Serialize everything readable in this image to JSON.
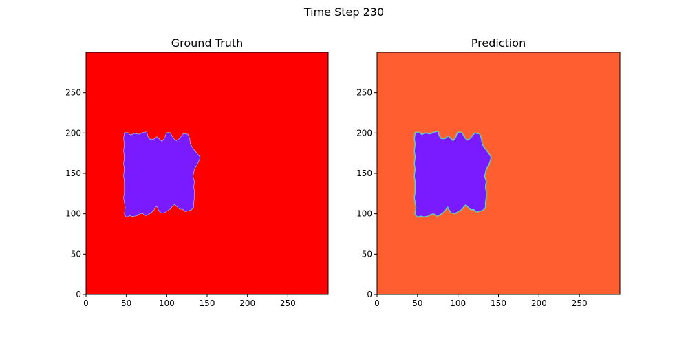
{
  "figure": {
    "suptitle": "Time Step 230"
  },
  "chart_data": [
    {
      "type": "heatmap",
      "title": "Ground Truth",
      "xlim": [
        0,
        300
      ],
      "ylim": [
        0,
        300
      ],
      "xticks": [
        "0",
        "50",
        "100",
        "150",
        "200",
        "250"
      ],
      "yticks": [
        "0",
        "50",
        "100",
        "150",
        "200",
        "250"
      ],
      "background_color": "#ff0000",
      "region_color": "#7a1aff",
      "edge_color": "#8ad8ff",
      "region_bounds": {
        "x": [
          47,
          141
        ],
        "y": [
          96,
          201
        ]
      },
      "region_outline": [
        [
          48,
          200
        ],
        [
          52,
          200
        ],
        [
          55,
          197
        ],
        [
          60,
          199
        ],
        [
          66,
          198
        ],
        [
          70,
          200
        ],
        [
          75,
          201
        ],
        [
          76,
          196
        ],
        [
          79,
          192
        ],
        [
          84,
          192
        ],
        [
          88,
          195
        ],
        [
          91,
          192
        ],
        [
          94,
          189
        ],
        [
          98,
          194
        ],
        [
          100,
          200
        ],
        [
          104,
          200
        ],
        [
          108,
          193
        ],
        [
          112,
          190
        ],
        [
          116,
          193
        ],
        [
          121,
          199
        ],
        [
          126,
          198
        ],
        [
          128,
          193
        ],
        [
          129,
          186
        ],
        [
          132,
          181
        ],
        [
          136,
          176
        ],
        [
          141,
          170
        ],
        [
          140,
          167
        ],
        [
          137,
          160
        ],
        [
          134,
          156
        ],
        [
          133,
          151
        ],
        [
          132,
          146
        ],
        [
          134,
          140
        ],
        [
          133,
          133
        ],
        [
          134,
          127
        ],
        [
          134,
          121
        ],
        [
          133,
          114
        ],
        [
          133,
          108
        ],
        [
          130,
          105
        ],
        [
          126,
          104
        ],
        [
          123,
          103
        ],
        [
          120,
          106
        ],
        [
          116,
          106
        ],
        [
          113,
          109
        ],
        [
          110,
          112
        ],
        [
          108,
          111
        ],
        [
          104,
          106
        ],
        [
          99,
          103
        ],
        [
          96,
          101
        ],
        [
          92,
          102
        ],
        [
          90,
          105
        ],
        [
          88,
          109
        ],
        [
          86,
          109
        ],
        [
          84,
          105
        ],
        [
          81,
          102
        ],
        [
          78,
          100
        ],
        [
          74,
          98
        ],
        [
          70,
          101
        ],
        [
          66,
          100
        ],
        [
          63,
          98
        ],
        [
          58,
          97
        ],
        [
          54,
          98
        ],
        [
          50,
          96
        ],
        [
          48,
          100
        ],
        [
          49,
          108
        ],
        [
          48,
          114
        ],
        [
          47,
          120
        ],
        [
          48,
          126
        ],
        [
          48,
          133
        ],
        [
          48,
          140
        ],
        [
          47,
          147
        ],
        [
          48,
          155
        ],
        [
          47,
          162
        ],
        [
          48,
          170
        ],
        [
          47,
          178
        ],
        [
          48,
          186
        ],
        [
          47,
          193
        ]
      ]
    },
    {
      "type": "heatmap",
      "title": "Prediction",
      "xlim": [
        0,
        300
      ],
      "ylim": [
        0,
        300
      ],
      "xticks": [
        "0",
        "50",
        "100",
        "150",
        "200",
        "250"
      ],
      "yticks": [
        "0",
        "50",
        "100",
        "150",
        "200",
        "250"
      ],
      "background_color": "#ff5f30",
      "region_color": "#7a1aff",
      "edge_color": "#39f2d6",
      "region_bounds": {
        "x": [
          47,
          140
        ],
        "y": [
          97,
          201
        ]
      },
      "region_outline": [
        [
          48,
          200
        ],
        [
          52,
          200
        ],
        [
          55,
          197
        ],
        [
          60,
          199
        ],
        [
          66,
          198
        ],
        [
          70,
          200
        ],
        [
          75,
          201
        ],
        [
          76,
          196
        ],
        [
          79,
          192
        ],
        [
          84,
          192
        ],
        [
          88,
          195
        ],
        [
          91,
          192
        ],
        [
          94,
          189
        ],
        [
          98,
          194
        ],
        [
          100,
          200
        ],
        [
          104,
          200
        ],
        [
          108,
          193
        ],
        [
          112,
          190
        ],
        [
          116,
          193
        ],
        [
          121,
          199
        ],
        [
          126,
          198
        ],
        [
          128,
          193
        ],
        [
          129,
          186
        ],
        [
          132,
          181
        ],
        [
          136,
          176
        ],
        [
          140,
          170
        ],
        [
          139,
          166
        ],
        [
          137,
          160
        ],
        [
          134,
          156
        ],
        [
          133,
          151
        ],
        [
          132,
          146
        ],
        [
          134,
          140
        ],
        [
          133,
          133
        ],
        [
          134,
          127
        ],
        [
          134,
          121
        ],
        [
          133,
          114
        ],
        [
          133,
          108
        ],
        [
          130,
          105
        ],
        [
          126,
          104
        ],
        [
          123,
          103
        ],
        [
          120,
          106
        ],
        [
          116,
          106
        ],
        [
          113,
          109
        ],
        [
          110,
          112
        ],
        [
          108,
          111
        ],
        [
          104,
          106
        ],
        [
          99,
          103
        ],
        [
          96,
          101
        ],
        [
          92,
          102
        ],
        [
          90,
          105
        ],
        [
          88,
          109
        ],
        [
          86,
          109
        ],
        [
          84,
          105
        ],
        [
          81,
          102
        ],
        [
          78,
          100
        ],
        [
          74,
          98
        ],
        [
          70,
          101
        ],
        [
          66,
          100
        ],
        [
          63,
          98
        ],
        [
          58,
          97
        ],
        [
          54,
          98
        ],
        [
          50,
          97
        ],
        [
          48,
          100
        ],
        [
          49,
          108
        ],
        [
          48,
          114
        ],
        [
          47,
          120
        ],
        [
          48,
          126
        ],
        [
          48,
          133
        ],
        [
          48,
          140
        ],
        [
          47,
          147
        ],
        [
          48,
          155
        ],
        [
          47,
          162
        ],
        [
          48,
          170
        ],
        [
          47,
          178
        ],
        [
          48,
          186
        ],
        [
          47,
          193
        ]
      ]
    }
  ]
}
